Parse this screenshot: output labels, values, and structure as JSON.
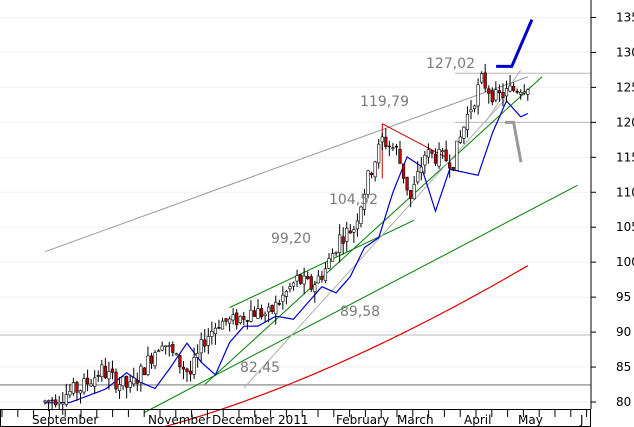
{
  "chart_data": {
    "type": "candlestick",
    "y_axis": {
      "ticks": [
        80,
        85,
        90,
        95,
        100,
        105,
        110,
        115,
        120,
        125,
        130,
        135
      ],
      "ylim": [
        79,
        137.5
      ],
      "position": "right"
    },
    "x_axis": {
      "month_labels": [
        "September",
        "November",
        "December",
        "2011",
        "February",
        "March",
        "April",
        "May",
        "J"
      ]
    },
    "annotations": [
      "127,02",
      "119,79",
      "104,52",
      "99,20",
      "89,58",
      "82,45"
    ],
    "horizontal_levels": [
      89.58,
      82.45,
      120.0,
      127.02
    ],
    "price_anchors": [
      [
        0,
        80.0
      ],
      [
        10,
        82.0
      ],
      [
        16,
        84.5
      ],
      [
        20,
        83.0
      ],
      [
        24,
        82.0
      ],
      [
        28,
        85.0
      ],
      [
        33,
        89.0
      ],
      [
        37,
        86.0
      ],
      [
        41,
        84.0
      ],
      [
        45,
        89.0
      ],
      [
        49,
        91.5
      ],
      [
        53,
        91.5
      ],
      [
        58,
        93.0
      ],
      [
        63,
        92.5
      ],
      [
        67,
        95.0
      ],
      [
        71,
        97.5
      ],
      [
        75,
        96.5
      ],
      [
        79,
        99.0
      ],
      [
        83,
        103.5
      ],
      [
        87,
        105.0
      ],
      [
        91,
        112.0
      ],
      [
        95,
        117.5
      ],
      [
        99,
        116.0
      ],
      [
        103,
        109.0
      ],
      [
        107,
        115.5
      ],
      [
        111,
        115.0
      ],
      [
        115,
        114.5
      ],
      [
        119,
        121.0
      ],
      [
        123,
        126.0
      ],
      [
        127,
        123.5
      ],
      [
        131,
        124.5
      ],
      [
        136,
        125.5
      ]
    ],
    "sessions": 137,
    "series": [
      {
        "type": "moving-average",
        "color": "#0000cc",
        "start_value": 78.5,
        "end_value": 117.3
      },
      {
        "type": "moving-average",
        "color": "#dd0000",
        "start_value": 73.5,
        "end_value": 99.5
      }
    ],
    "trendlines": [
      {
        "color": "#999999",
        "from": [
          0,
          101.5
        ],
        "to": [
          136,
          126.5
        ]
      },
      {
        "color": "#008000",
        "from": [
          28,
          78.5
        ],
        "to": [
          150,
          111.0
        ]
      },
      {
        "color": "#008000",
        "from": [
          45,
          82.5
        ],
        "to": [
          140,
          126.5
        ]
      },
      {
        "color": "#008000",
        "from": [
          52,
          93.5
        ],
        "to": [
          104,
          106.0
        ]
      },
      {
        "color": "#b0b0b0",
        "from": [
          56,
          82.0
        ],
        "to": [
          130,
          123.5
        ]
      },
      {
        "color": "#b0b0b0",
        "from": [
          124,
          120.0
        ],
        "to": [
          134,
          127.5
        ]
      },
      {
        "color": "#cc0000",
        "from": [
          95,
          119.8
        ],
        "to": [
          113,
          115.0
        ]
      },
      {
        "color": "#cc0000",
        "from": [
          95,
          119.8
        ],
        "to": [
          95,
          112.0
        ]
      }
    ],
    "projections": [
      {
        "color": "#0000cc",
        "points": [
          [
            127.5,
            128.0
          ],
          [
            131.5,
            128.0
          ],
          [
            137,
            134.5
          ]
        ]
      },
      {
        "color": "#999999",
        "points": [
          [
            130,
            120.0
          ],
          [
            132,
            120.0
          ],
          [
            134,
            114.5
          ]
        ]
      }
    ]
  }
}
